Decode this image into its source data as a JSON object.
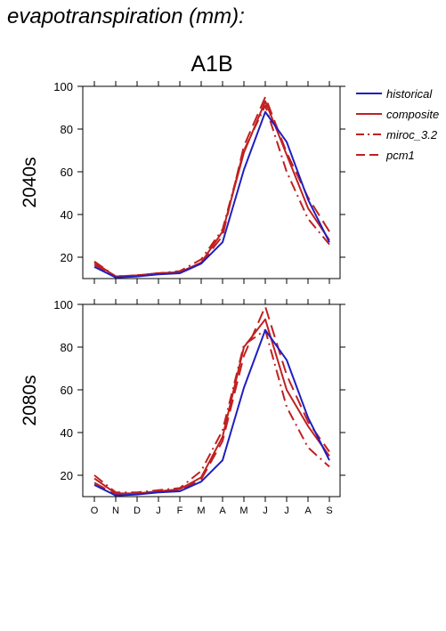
{
  "figure": {
    "title": "evapotranspiration (mm):",
    "scenario": "A1B"
  },
  "colors": {
    "historical": "#1f1fbf",
    "model": "#c02020"
  },
  "chart_data": [
    {
      "type": "line",
      "row_label": "2040s",
      "categories": [
        "O",
        "N",
        "D",
        "J",
        "F",
        "M",
        "A",
        "M",
        "J",
        "J",
        "A",
        "S"
      ],
      "ylim": [
        10,
        100
      ],
      "yticks": [
        20,
        40,
        60,
        80,
        100
      ],
      "series": [
        {
          "name": "historical",
          "style": "solid",
          "color": "#1f1fbf",
          "values": [
            15.5,
            10.5,
            11,
            12,
            12.5,
            17,
            27,
            61,
            88,
            74,
            47,
            27
          ]
        },
        {
          "name": "composite",
          "style": "solid",
          "color": "#c02020",
          "values": [
            17.5,
            11,
            11.5,
            12.5,
            13,
            17.5,
            32,
            69,
            93,
            68,
            43,
            28
          ]
        },
        {
          "name": "miroc_3.2",
          "style": "dashdot",
          "color": "#c02020",
          "values": [
            18,
            11,
            11.5,
            12.5,
            13.5,
            19,
            33,
            70,
            91,
            60,
            38,
            26
          ]
        },
        {
          "name": "pcm1",
          "style": "dash",
          "color": "#c02020",
          "values": [
            16.5,
            11,
            11.5,
            12.5,
            12.5,
            17,
            30,
            72,
            95,
            69,
            48,
            32
          ]
        }
      ]
    },
    {
      "type": "line",
      "row_label": "2080s",
      "categories": [
        "O",
        "N",
        "D",
        "J",
        "F",
        "M",
        "A",
        "M",
        "J",
        "J",
        "A",
        "S"
      ],
      "ylim": [
        10,
        100
      ],
      "yticks": [
        20,
        40,
        60,
        80,
        100
      ],
      "series": [
        {
          "name": "historical",
          "style": "solid",
          "color": "#1f1fbf",
          "values": [
            15.5,
            10.5,
            11,
            12,
            12.5,
            17,
            27,
            61,
            88,
            74,
            47,
            27
          ]
        },
        {
          "name": "composite",
          "style": "solid",
          "color": "#c02020",
          "values": [
            18.5,
            11.5,
            11.5,
            12.5,
            13.5,
            19,
            38,
            80,
            93,
            60,
            43,
            29
          ]
        },
        {
          "name": "miroc_3.2",
          "style": "dashdot",
          "color": "#c02020",
          "values": [
            20,
            12,
            12,
            13,
            14,
            22,
            41,
            81,
            88,
            52,
            33,
            24
          ]
        },
        {
          "name": "pcm1",
          "style": "dash",
          "color": "#c02020",
          "values": [
            16.5,
            11,
            11.5,
            12.5,
            13,
            18,
            36,
            76,
            99,
            67,
            45,
            31
          ]
        }
      ]
    }
  ],
  "legend": {
    "items": [
      {
        "label": "historical",
        "style": "solid",
        "color": "#1f1fbf"
      },
      {
        "label": "composite",
        "style": "solid",
        "color": "#c02020"
      },
      {
        "label": "miroc_3.2",
        "style": "dashdot",
        "color": "#c02020"
      },
      {
        "label": "pcm1",
        "style": "dash",
        "color": "#c02020"
      }
    ]
  }
}
